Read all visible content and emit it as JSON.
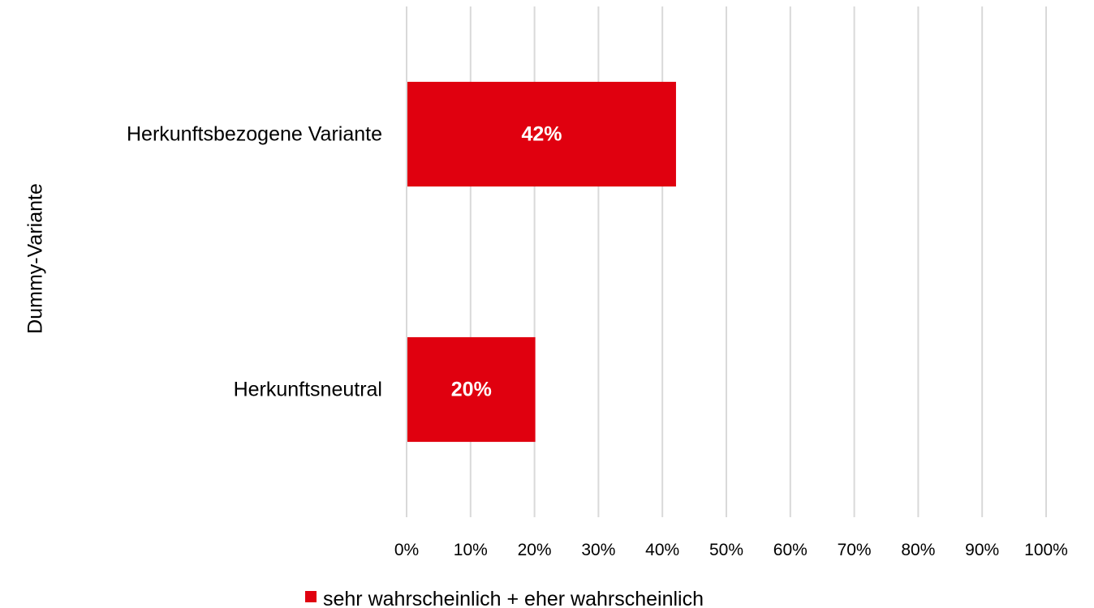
{
  "chart_data": {
    "type": "bar",
    "orientation": "horizontal",
    "categories": [
      "Herkunftsbezogene Variante",
      "Herkunftsneutral"
    ],
    "series": [
      {
        "name": "sehr wahrscheinlich + eher wahrscheinlich",
        "values": [
          0.42,
          0.2
        ],
        "data_labels": [
          "42%",
          "20%"
        ],
        "color": "#e0000f"
      }
    ],
    "xlim": [
      0,
      1
    ],
    "x_ticks": [
      0,
      0.1,
      0.2,
      0.3,
      0.4,
      0.5,
      0.6,
      0.7,
      0.8,
      0.9,
      1.0
    ],
    "x_tick_labels": [
      "0%",
      "10%",
      "20%",
      "30%",
      "40%",
      "50%",
      "60%",
      "70%",
      "80%",
      "90%",
      "100%"
    ],
    "xlabel": "",
    "ylabel": "Dummy-Variante",
    "grid": true,
    "legend_position": "bottom"
  }
}
